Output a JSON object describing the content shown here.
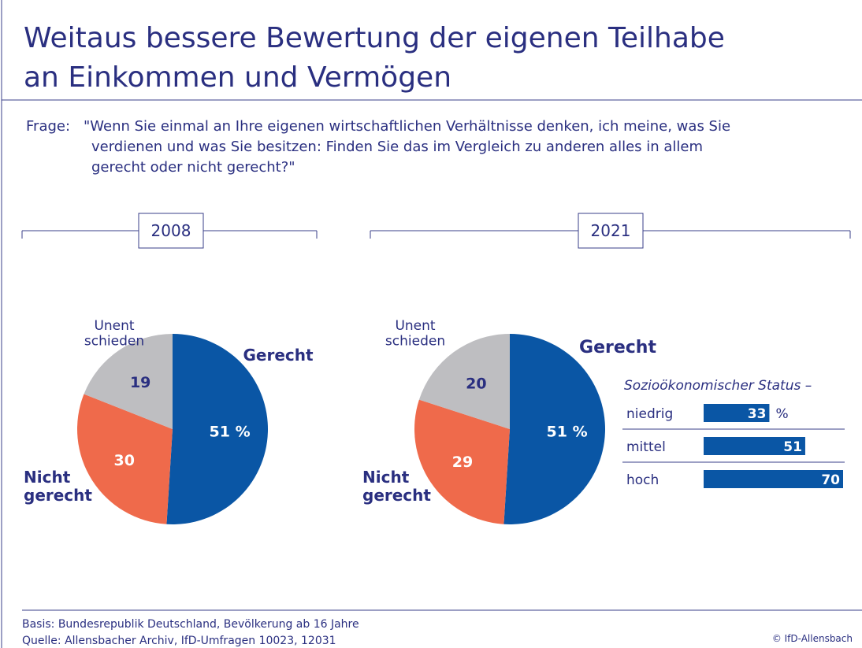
{
  "title": [
    "Weitaus bessere Bewertung der eigenen Teilhabe",
    "an Einkommen und Vermögen"
  ],
  "question_label": "Frage:",
  "question": [
    "\"Wenn Sie einmal an Ihre eigenen wirtschaftlichen Verhältnisse denken, ich meine, was Sie",
    "verdienen und was Sie besitzen: Finden Sie das im Vergleich zu anderen alles in allem",
    "gerecht oder nicht gerecht?\""
  ],
  "chart_data": [
    {
      "type": "pie",
      "title": "2008",
      "categories": [
        "Gerecht",
        "Nicht gerecht",
        "Unent schieden"
      ],
      "values": [
        51,
        30,
        19
      ],
      "value_labels": [
        "51 %",
        "30",
        "19"
      ],
      "colors": [
        "#0a56a5",
        "#ef6a4b",
        "#bebec1"
      ]
    },
    {
      "type": "pie",
      "title": "2021",
      "categories": [
        "Gerecht",
        "Nicht gerecht",
        "Unent schieden"
      ],
      "values": [
        51,
        29,
        20
      ],
      "value_labels": [
        "51 %",
        "29",
        "20"
      ],
      "colors": [
        "#0a56a5",
        "#ef6a4b",
        "#bebec1"
      ]
    },
    {
      "type": "hbar",
      "title": "Sozioökonomischer Status –",
      "categories": [
        "niedrig",
        "mittel",
        "hoch"
      ],
      "values": [
        33,
        51,
        70
      ],
      "unit_label": "%",
      "color": "#0a56a5"
    }
  ],
  "footer": {
    "basis": "Basis: Bundesrepublik Deutschland, Bevölkerung ab 16 Jahre",
    "source": "Quelle: Allensbacher Archiv, IfD-Umfragen 10023, 12031",
    "copyright": "© IfD-Allensbach"
  }
}
